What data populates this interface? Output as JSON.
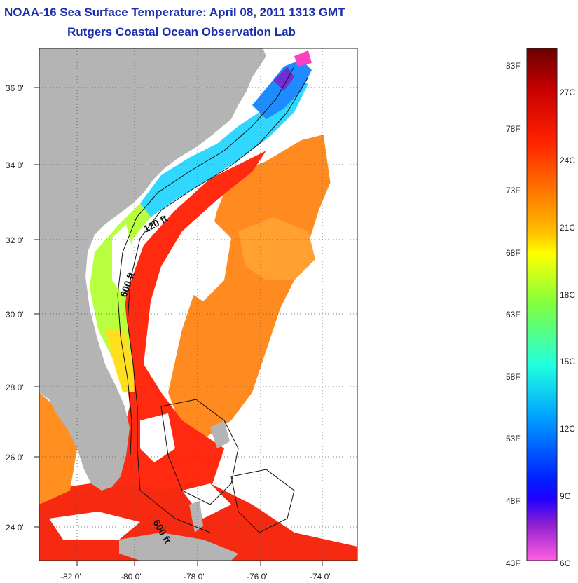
{
  "title": "NOAA-16 Sea Surface Temperature:  April 08, 2011 1313 GMT",
  "subtitle": "Rutgers Coastal Ocean Observation Lab",
  "axes": {
    "lat_labels": [
      "36 0'",
      "34 0'",
      "32 0'",
      "30 0'",
      "28 0'",
      "26 0'",
      "24 0'"
    ],
    "lon_labels": [
      "-82 0'",
      "-80 0'",
      "-78 0'",
      "-76 0'",
      "-74 0'"
    ]
  },
  "contour_labels": [
    "120 ft",
    "600 ft",
    "600 ft"
  ],
  "colorbar": {
    "fahrenheit_labels": [
      "83F",
      "78F",
      "73F",
      "68F",
      "63F",
      "58F",
      "53F",
      "48F",
      "43F"
    ],
    "celsius_labels": [
      "27C",
      "24C",
      "21C",
      "18C",
      "15C",
      "12C",
      "9C",
      "6C"
    ],
    "colors": [
      "#800000",
      "#cc0000",
      "#ff2a00",
      "#ff7a00",
      "#ffc000",
      "#ffff00",
      "#80ff40",
      "#20ffd0",
      "#00c0ff",
      "#0060ff",
      "#0000ff",
      "#8000c0",
      "#ff40c0",
      "#ff66dd"
    ]
  },
  "map_colors": {
    "land": "#b4b4b4",
    "cloud": "#ffffff",
    "gulf_stream": "#ff2a10",
    "offshore": "#ff8c20",
    "shelf_cool": "#30d0ff",
    "shelf_cold": "#2090ff",
    "shelf_warm": "#a0ff40"
  }
}
